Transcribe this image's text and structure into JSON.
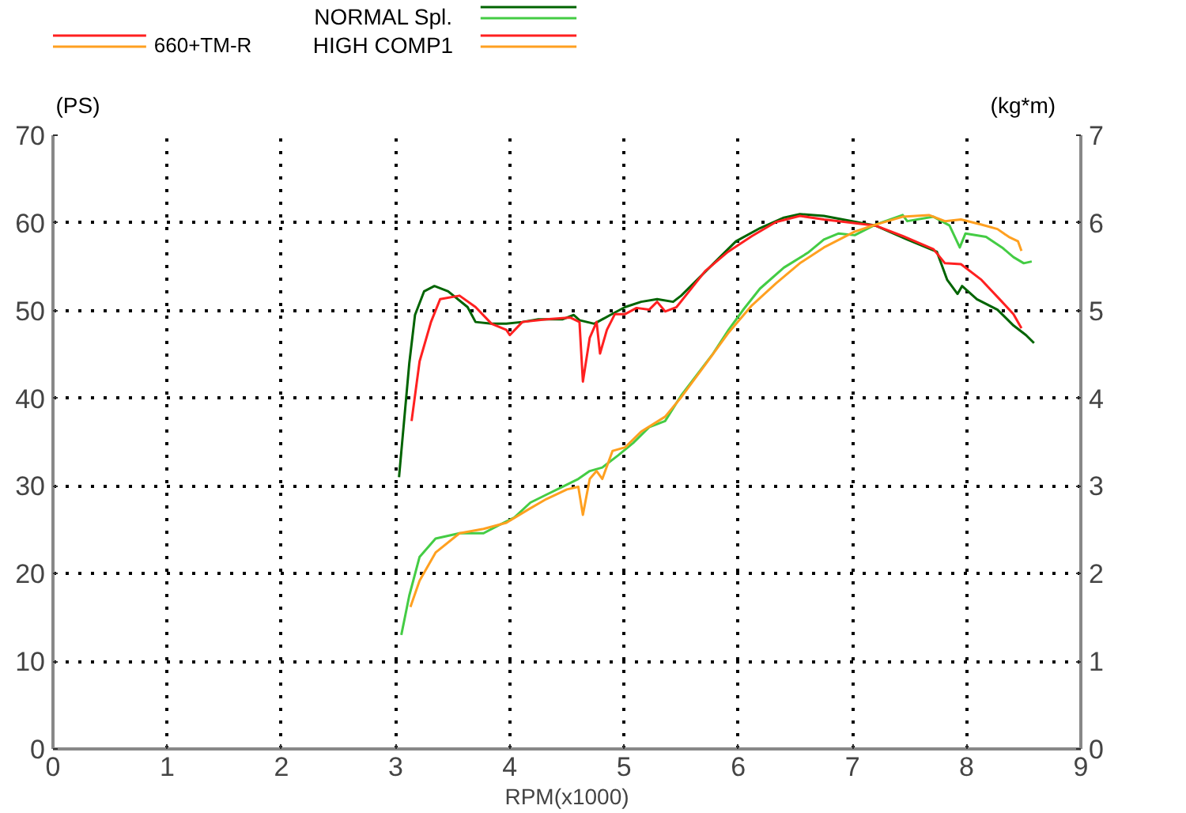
{
  "chart_data": {
    "type": "line",
    "xlabel": "RPM(x1000)",
    "ylabel": "(PS)",
    "y2label": "(kg*m)",
    "xlim": [
      0,
      9
    ],
    "xticks": [
      0,
      1,
      2,
      3,
      4,
      5,
      6,
      7,
      8,
      9
    ],
    "ylim": [
      0,
      70
    ],
    "yticks": [
      0,
      10,
      20,
      30,
      40,
      50,
      60,
      70
    ],
    "y2lim": [
      0,
      7
    ],
    "y2ticks": [
      0,
      1,
      2,
      3,
      4,
      5,
      6,
      7
    ],
    "grid": true,
    "legend": "top",
    "marker": "none",
    "line_style": "solid",
    "annotations": [
      "660+TM-R"
    ],
    "series": [
      {
        "name": "NORMAL Spl.",
        "color": "#006400",
        "axis": "y2",
        "x": [
          3.03,
          3.12,
          3.17,
          3.25,
          3.34,
          3.46,
          3.63,
          3.7,
          3.84,
          3.97,
          4.11,
          4.25,
          4.46,
          4.56,
          4.61,
          4.74,
          4.88,
          5.01,
          5.15,
          5.29,
          5.43,
          5.5,
          5.64,
          5.84,
          5.98,
          6.19,
          6.4,
          6.54,
          6.75,
          7.2,
          7.48,
          7.74,
          7.83,
          7.92,
          7.96,
          8.09,
          8.27,
          8.41,
          8.52,
          8.59
        ],
        "values": [
          3.1,
          4.4,
          4.95,
          5.22,
          5.28,
          5.22,
          5.04,
          4.87,
          4.85,
          4.85,
          4.87,
          4.9,
          4.9,
          4.95,
          4.89,
          4.85,
          4.95,
          5.04,
          5.1,
          5.13,
          5.1,
          5.17,
          5.35,
          5.61,
          5.79,
          5.94,
          6.06,
          6.1,
          6.08,
          5.97,
          5.81,
          5.67,
          5.35,
          5.19,
          5.28,
          5.13,
          5.01,
          4.83,
          4.72,
          4.63
        ]
      },
      {
        "color": "#44cc44",
        "x": [
          3.05,
          3.12,
          3.21,
          3.35,
          3.56,
          3.77,
          3.9,
          4.04,
          4.18,
          4.32,
          4.46,
          4.6,
          4.7,
          4.81,
          4.95,
          5.08,
          5.22,
          5.36,
          5.5,
          5.64,
          5.78,
          5.91,
          6.05,
          6.19,
          6.4,
          6.61,
          6.75,
          6.88,
          7.02,
          7.2,
          7.44,
          7.48,
          7.71,
          7.85,
          7.94,
          7.99,
          8.17,
          8.31,
          8.41,
          8.5,
          8.57
        ],
        "values": [
          13,
          17.5,
          21.9,
          24,
          24.6,
          24.6,
          25.5,
          26.4,
          28.1,
          29,
          29.9,
          30.8,
          31.7,
          32.1,
          33.5,
          34.9,
          36.7,
          37.4,
          40.3,
          42.7,
          45.1,
          47.7,
          50.2,
          52.5,
          54.9,
          56.6,
          58.1,
          58.8,
          58.6,
          59.8,
          60.9,
          60.2,
          60.7,
          59.7,
          57.2,
          58.8,
          58.4,
          57.2,
          56.1,
          55.4,
          55.6
        ]
      },
      {
        "name": "HIGH COMP1",
        "color": "#ff2020",
        "axis": "y2",
        "x": [
          3.14,
          3.21,
          3.31,
          3.39,
          3.56,
          3.7,
          3.84,
          3.97,
          4.0,
          4.11,
          4.32,
          4.53,
          4.61,
          4.64,
          4.7,
          4.76,
          4.79,
          4.85,
          4.92,
          5.01,
          5.11,
          5.22,
          5.29,
          5.36,
          5.46,
          5.57,
          5.71,
          5.91,
          6.12,
          6.33,
          6.54,
          6.75,
          7.2,
          7.44,
          7.71,
          7.81,
          7.95,
          8.13,
          8.31,
          8.41,
          8.48
        ],
        "values": [
          3.74,
          4.42,
          4.87,
          5.13,
          5.17,
          5.04,
          4.85,
          4.78,
          4.72,
          4.87,
          4.9,
          4.92,
          4.87,
          4.19,
          4.69,
          4.87,
          4.51,
          4.78,
          4.96,
          4.96,
          5.03,
          5.01,
          5.1,
          4.99,
          5.04,
          5.22,
          5.45,
          5.67,
          5.85,
          6.01,
          6.08,
          6.04,
          5.97,
          5.85,
          5.7,
          5.54,
          5.53,
          5.35,
          5.1,
          4.96,
          4.8
        ]
      },
      {
        "color": "#ffa020",
        "x": [
          3.13,
          3.21,
          3.35,
          3.56,
          3.77,
          3.97,
          4.16,
          4.32,
          4.5,
          4.6,
          4.64,
          4.7,
          4.76,
          4.81,
          4.9,
          5.01,
          5.15,
          5.36,
          5.5,
          5.71,
          5.91,
          6.12,
          6.33,
          6.54,
          6.75,
          7.02,
          7.2,
          7.44,
          7.67,
          7.81,
          7.95,
          8.13,
          8.27,
          8.37,
          8.45,
          8.48
        ],
        "values": [
          16.2,
          19.2,
          22.4,
          24.6,
          25.1,
          25.8,
          27.3,
          28.5,
          29.6,
          29.9,
          26.7,
          30.8,
          31.7,
          30.8,
          34,
          34.4,
          36.2,
          37.9,
          40.1,
          43.8,
          47.4,
          50.6,
          53.1,
          55.4,
          57.2,
          59,
          59.8,
          60.7,
          60.9,
          60.2,
          60.4,
          59.8,
          59.3,
          58.4,
          57.9,
          56.8
        ]
      }
    ]
  }
}
